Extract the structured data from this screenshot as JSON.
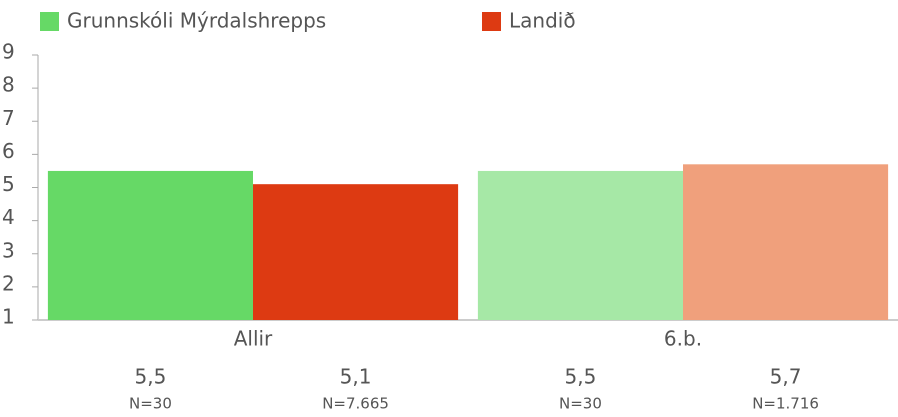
{
  "chart_data": {
    "type": "bar",
    "categories": [
      "Allir",
      "6.b."
    ],
    "series": [
      {
        "name": "Grunnskóli Mýrdalshrepps",
        "color": "#66d966",
        "colors": [
          "#66d966",
          "#a6e8a6"
        ],
        "values": [
          5.5,
          5.5
        ],
        "value_labels": [
          "5,5",
          "5,5"
        ],
        "n_labels": [
          "N=30",
          "N=30"
        ]
      },
      {
        "name": "Landið",
        "color": "#dd3a12",
        "colors": [
          "#dd3a12",
          "#f0a07c"
        ],
        "values": [
          5.1,
          5.7
        ],
        "value_labels": [
          "5,1",
          "5,7"
        ],
        "n_labels": [
          "N=7.665",
          "N=1.716"
        ]
      }
    ],
    "ylim": [
      1,
      9
    ],
    "yticks": [
      1,
      2,
      3,
      4,
      5,
      6,
      7,
      8,
      9
    ],
    "grid": false
  }
}
